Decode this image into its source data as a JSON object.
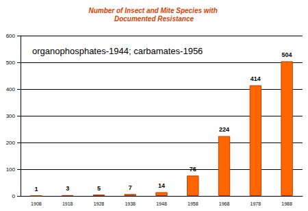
{
  "chart_data": {
    "type": "bar",
    "title": "Number of Insect and Mite Species with Documented Resistance",
    "annotation": "organophosphates-1944; carbamates-1956",
    "categories": [
      "1908",
      "1918",
      "1928",
      "1938",
      "1948",
      "1958",
      "1968",
      "1978",
      "1988"
    ],
    "values": [
      1,
      3,
      5,
      7,
      14,
      76,
      224,
      414,
      504
    ],
    "color": "#ff6600",
    "ylim": [
      0,
      600
    ],
    "yticks": [
      0,
      100,
      200,
      300,
      400,
      500,
      600
    ],
    "grid": true,
    "data_labels": true
  }
}
